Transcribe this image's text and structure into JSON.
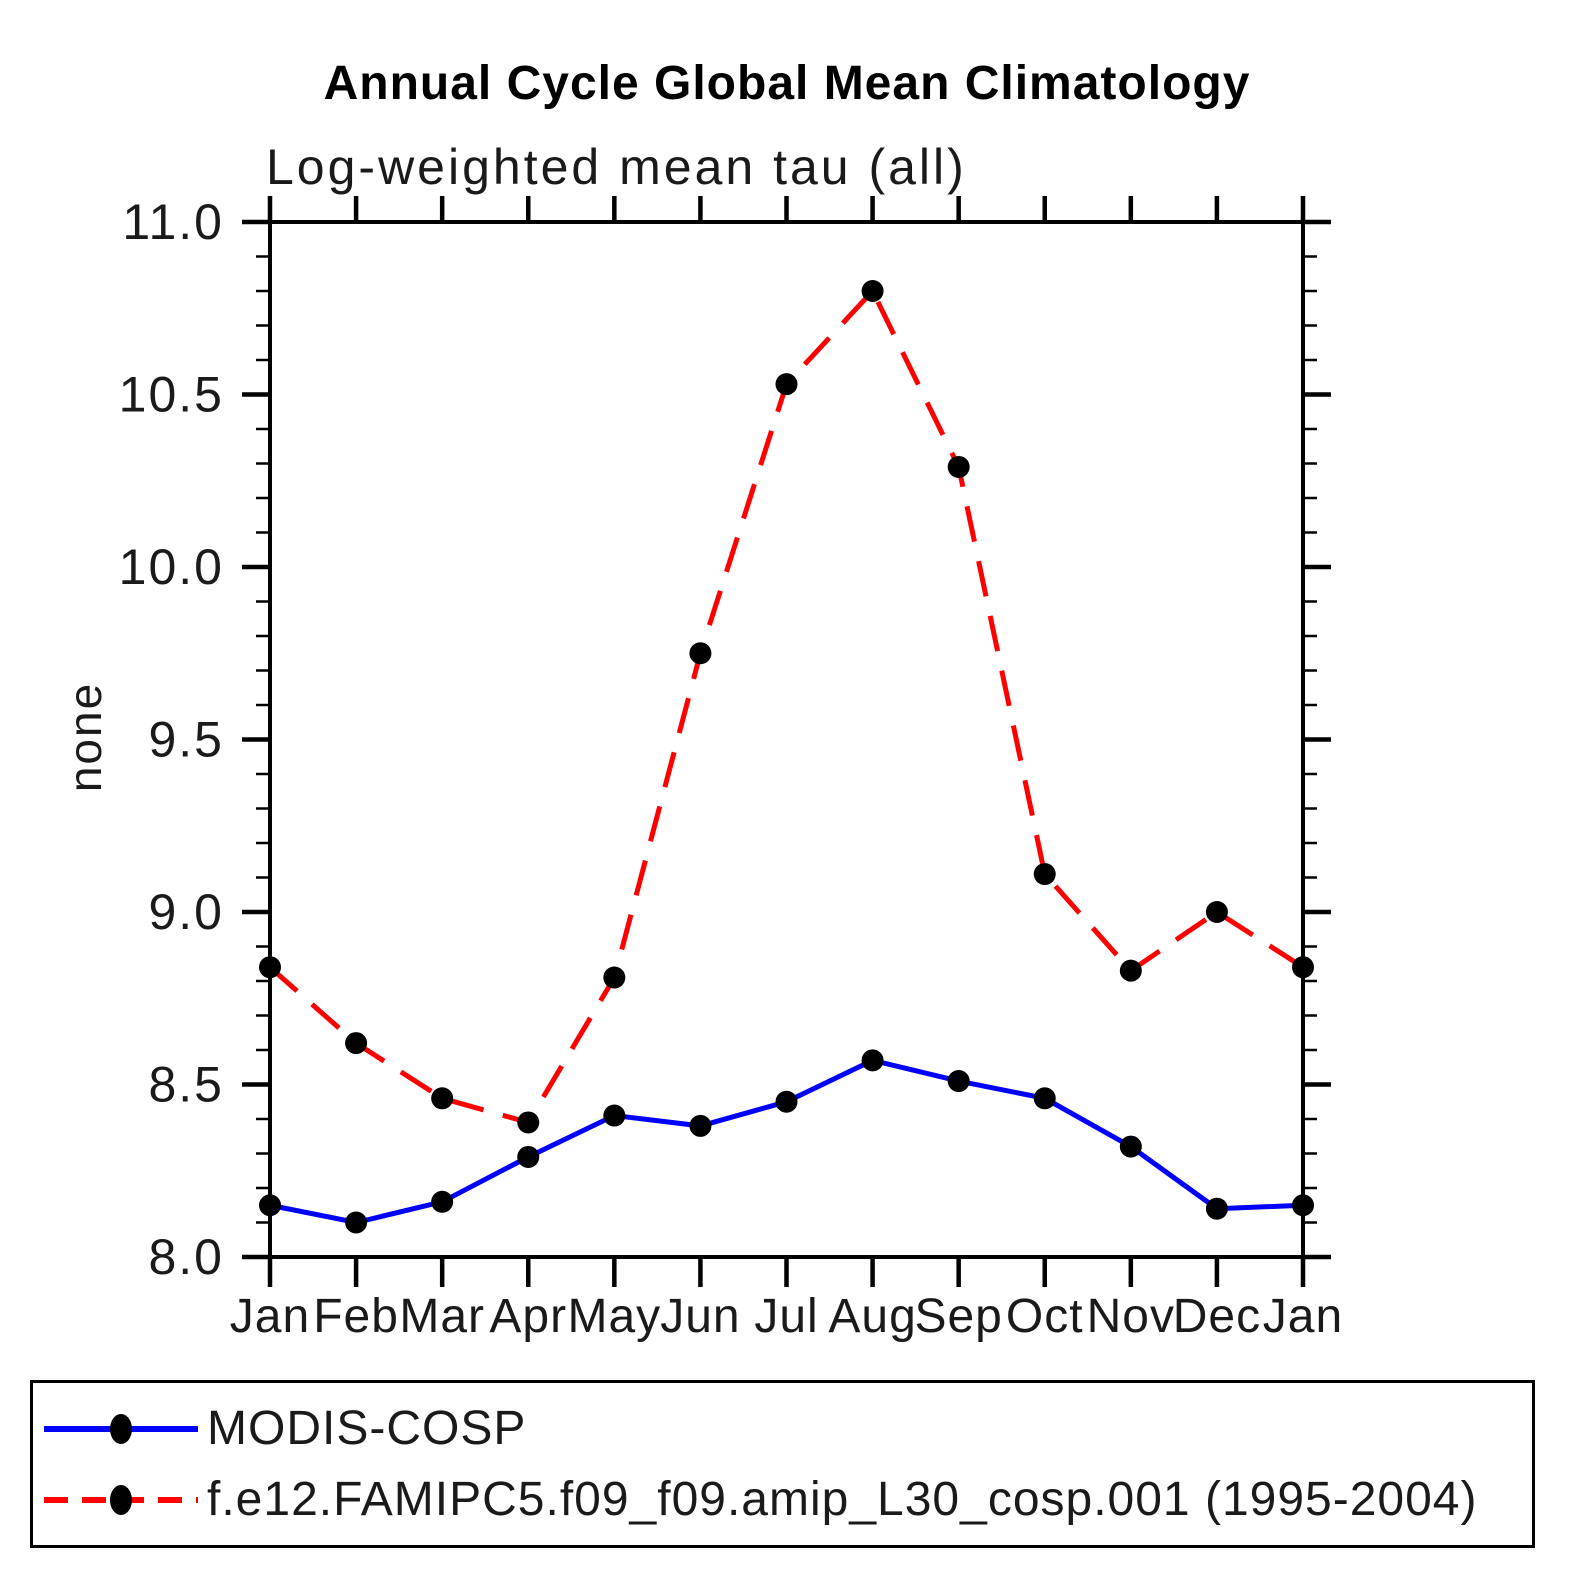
{
  "title": "Annual Cycle Global Mean Climatology",
  "subtitle": "Log-weighted mean tau (all)",
  "y_axis_label": "none",
  "legend": {
    "position": "bottom",
    "items": [
      {
        "label": "MODIS-COSP",
        "color": "#0000ff",
        "line_style": "solid",
        "marker": "black-dot"
      },
      {
        "label": "f.e12.FAMIPC5.f09_f09.amip_L30_cosp.001 (1995-2004)",
        "color": "#ff0000",
        "line_style": "dashed",
        "marker": "black-dot"
      }
    ]
  },
  "chart_data": {
    "type": "line",
    "title": "Annual Cycle Global Mean Climatology",
    "subtitle": "Log-weighted mean tau (all)",
    "xlabel": "",
    "ylabel": "none",
    "categories": [
      "Jan",
      "Feb",
      "Mar",
      "Apr",
      "May",
      "Jun",
      "Jul",
      "Aug",
      "Sep",
      "Oct",
      "Nov",
      "Dec",
      "Jan"
    ],
    "series": [
      {
        "name": "MODIS-COSP",
        "color": "#0000ff",
        "line_style": "solid",
        "marker": "black-dot",
        "values": [
          8.15,
          8.1,
          8.16,
          8.29,
          8.41,
          8.38,
          8.45,
          8.57,
          8.51,
          8.46,
          8.32,
          8.14,
          8.15
        ]
      },
      {
        "name": "f.e12.FAMIPC5.f09_f09.amip_L30_cosp.001 (1995-2004)",
        "color": "#ff0000",
        "line_style": "dashed",
        "marker": "black-dot",
        "values": [
          8.84,
          8.62,
          8.46,
          8.39,
          8.81,
          9.75,
          10.53,
          10.8,
          10.29,
          9.11,
          8.83,
          9.0,
          8.84
        ]
      }
    ],
    "ylim": [
      8.0,
      11.0
    ],
    "y_major_ticks": [
      8.0,
      8.5,
      9.0,
      9.5,
      10.0,
      10.5,
      11.0
    ],
    "y_minor_step": 0.1,
    "grid": false,
    "tick_direction": "out",
    "legend_position": "bottom"
  },
  "style": {
    "axis_color": "#000000",
    "marker_color": "#000000",
    "background": "#ffffff"
  }
}
